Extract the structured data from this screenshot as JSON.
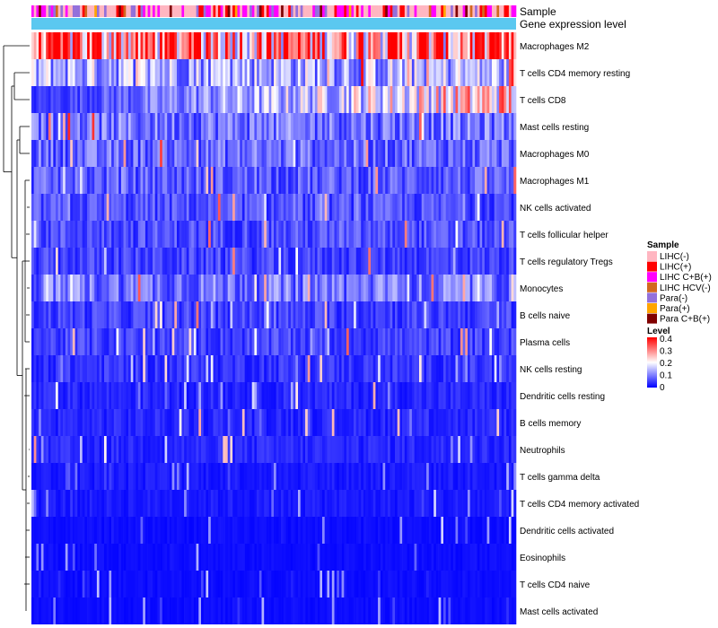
{
  "chart_data": {
    "type": "heatmap",
    "title": "",
    "annotation_tracks": [
      "Sample",
      "Gene expression level"
    ],
    "row_labels": [
      "Macrophages M2",
      "T cells CD4 memory resting",
      "T cells CD8",
      "Mast cells resting",
      "Macrophages M0",
      "Macrophages M1",
      "NK cells activated",
      "T cells follicular helper",
      "T cells regulatory  Tregs",
      "Monocytes",
      "B cells naive",
      "Plasma cells",
      "NK cells resting",
      "Dendritic cells resting",
      "B cells memory",
      "Neutrophils",
      "T cells gamma delta",
      "T cells CD4 memory activated",
      "Dendritic cells activated",
      "Eosinophils",
      "T cells CD4 naive",
      "Mast cells activated"
    ],
    "row_mean_level": [
      0.3,
      0.14,
      0.13,
      0.09,
      0.08,
      0.07,
      0.06,
      0.06,
      0.05,
      0.09,
      0.05,
      0.05,
      0.04,
      0.03,
      0.03,
      0.03,
      0.02,
      0.02,
      0.01,
      0.01,
      0.01,
      0.01
    ],
    "n_samples": 200,
    "legend": {
      "sample_title": "Sample",
      "sample_groups": [
        {
          "label": "LIHC(-)",
          "color": "#ffb6c1"
        },
        {
          "label": "LIHC(+)",
          "color": "#ff0000"
        },
        {
          "label": "LIHC C+B(+)",
          "color": "#ff00ff"
        },
        {
          "label": "LIHC HCV(-)",
          "color": "#d2691e"
        },
        {
          "label": "Para(-)",
          "color": "#9370db"
        },
        {
          "label": "Para(+)",
          "color": "#ffa500"
        },
        {
          "label": "Para C+B(+)",
          "color": "#800000"
        }
      ],
      "level_title": "Level",
      "level_ticks": [
        "0.4",
        "0.3",
        "0.2",
        "0.1",
        "0"
      ],
      "level_range": [
        0,
        0.4
      ],
      "level_colors": [
        "#0000ff",
        "#ffffff",
        "#ff0000"
      ]
    },
    "expression_track_color": "#5bc8f0"
  }
}
